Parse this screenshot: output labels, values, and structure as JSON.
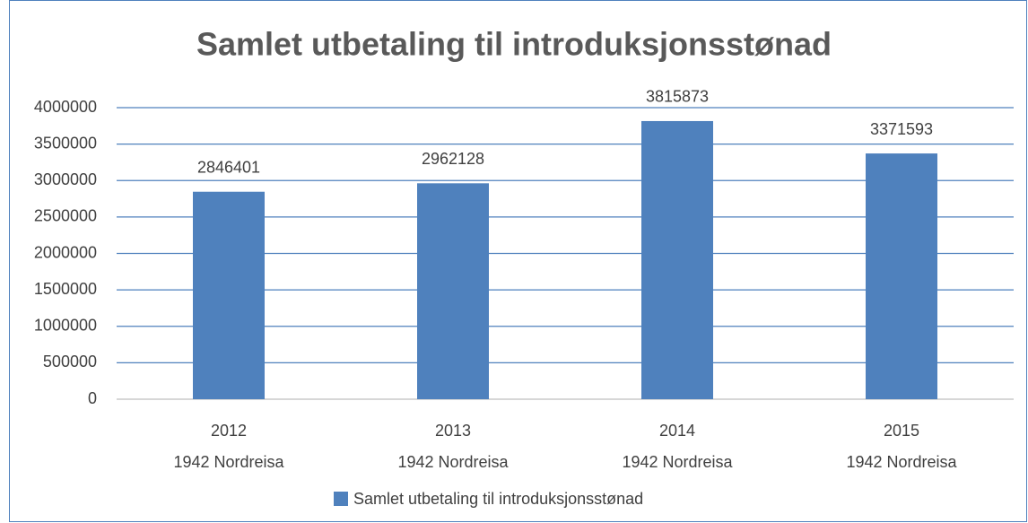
{
  "chart_data": {
    "type": "bar",
    "title": "Samlet utbetaling til introduksjonsstønad",
    "categories": [
      [
        "2012",
        "1942 Nordreisa"
      ],
      [
        "2013",
        "1942 Nordreisa"
      ],
      [
        "2014",
        "1942 Nordreisa"
      ],
      [
        "2015",
        "1942 Nordreisa"
      ]
    ],
    "series": [
      {
        "name": "Samlet utbetaling til introduksjonsstønad",
        "color": "#4f81bd",
        "values": [
          2846401,
          2962128,
          3815873,
          3371593
        ]
      }
    ],
    "ylim": [
      0,
      4000000
    ],
    "yticks": [
      0,
      500000,
      1000000,
      1500000,
      2000000,
      2500000,
      3000000,
      3500000,
      4000000
    ],
    "grid": true,
    "legend": "bottom"
  }
}
